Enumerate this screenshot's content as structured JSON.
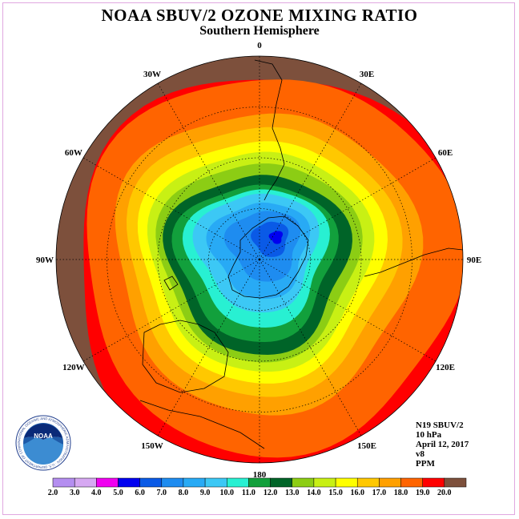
{
  "header": {
    "title": "NOAA SBUV/2 OZONE MIXING RATIO",
    "subtitle": "Southern Hemisphere"
  },
  "longitude_labels": [
    {
      "text": "90W",
      "lon_deg": 180
    },
    {
      "text": "60W",
      "lon_deg": 150
    },
    {
      "text": "30W",
      "lon_deg": 120
    },
    {
      "text": "0",
      "lon_deg": 90
    },
    {
      "text": "30E",
      "lon_deg": 60
    },
    {
      "text": "60E",
      "lon_deg": 30
    },
    {
      "text": "90E",
      "lon_deg": 0
    },
    {
      "text": "120E",
      "lon_deg": -30
    },
    {
      "text": "150E",
      "lon_deg": -60
    },
    {
      "text": "180",
      "lon_deg": -90
    },
    {
      "text": "150W",
      "lon_deg": -120
    },
    {
      "text": "120W",
      "lon_deg": -150
    }
  ],
  "info": {
    "satellite": "N19 SBUV/2",
    "level": "10 hPa",
    "date": "April 12, 2017",
    "version": "v8",
    "units": "PPM"
  },
  "colorbar": {
    "ticks": [
      "2.0",
      "3.0",
      "4.0",
      "5.0",
      "6.0",
      "7.0",
      "8.0",
      "9.0",
      "10.0",
      "11.0",
      "12.0",
      "13.0",
      "14.0",
      "15.0",
      "16.0",
      "17.0",
      "18.0",
      "19.0",
      "20.0"
    ],
    "colors": [
      "#b48ef0",
      "#d6a8f2",
      "#f000f0",
      "#0000f0",
      "#0a5ae6",
      "#1e8cf0",
      "#28aaf5",
      "#3cc8f5",
      "#28f0d2",
      "#12a03c",
      "#006428",
      "#8ccd14",
      "#c8f014",
      "#ffff00",
      "#ffc800",
      "#ffa000",
      "#ff6400",
      "#ff0000",
      "#7d503c"
    ]
  },
  "logo": {
    "text": "NOAA",
    "ring_text": "NATIONAL OCEANIC AND ATMOSPHERIC ADMINISTRATION · U.S. DEPARTMENT OF COMMERCE"
  },
  "map": {
    "contour_levels": [
      19,
      18,
      17,
      16,
      15,
      14,
      13,
      12,
      11,
      10,
      9,
      8,
      7,
      6,
      5
    ],
    "min_value": 5
  }
}
